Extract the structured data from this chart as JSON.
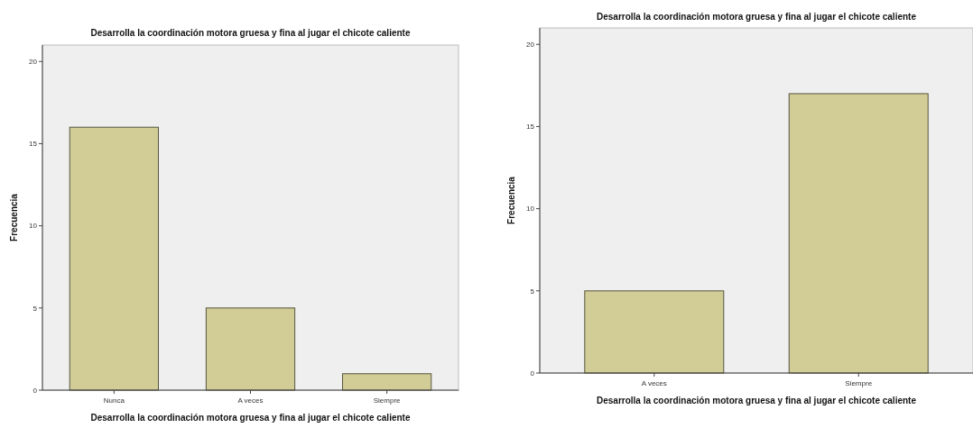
{
  "chart_data": [
    {
      "type": "bar",
      "title": "Desarrolla la coordinación motora gruesa y fina al jugar el chicote caliente",
      "xlabel": "Desarrolla la coordinación motora gruesa y fina al jugar el chicote caliente",
      "ylabel": "Frecuencia",
      "categories": [
        "Nunca",
        "A veces",
        "Siempre"
      ],
      "values": [
        16,
        5,
        1
      ],
      "color": "#d2cc96",
      "ylim": [
        0,
        21
      ],
      "yticks": [
        0,
        5,
        10,
        15,
        20
      ]
    },
    {
      "type": "bar",
      "title": "Desarrolla la coordinación motora gruesa y fina al jugar el chicote caliente",
      "xlabel": "Desarrolla la coordinación motora gruesa y fina al jugar el chicote caliente",
      "ylabel": "Frecuencia",
      "categories": [
        "A veces",
        "Siempre"
      ],
      "values": [
        5,
        17
      ],
      "color": "#d2cc96",
      "ylim": [
        0,
        21
      ],
      "yticks": [
        0,
        5,
        10,
        15,
        20
      ]
    }
  ]
}
